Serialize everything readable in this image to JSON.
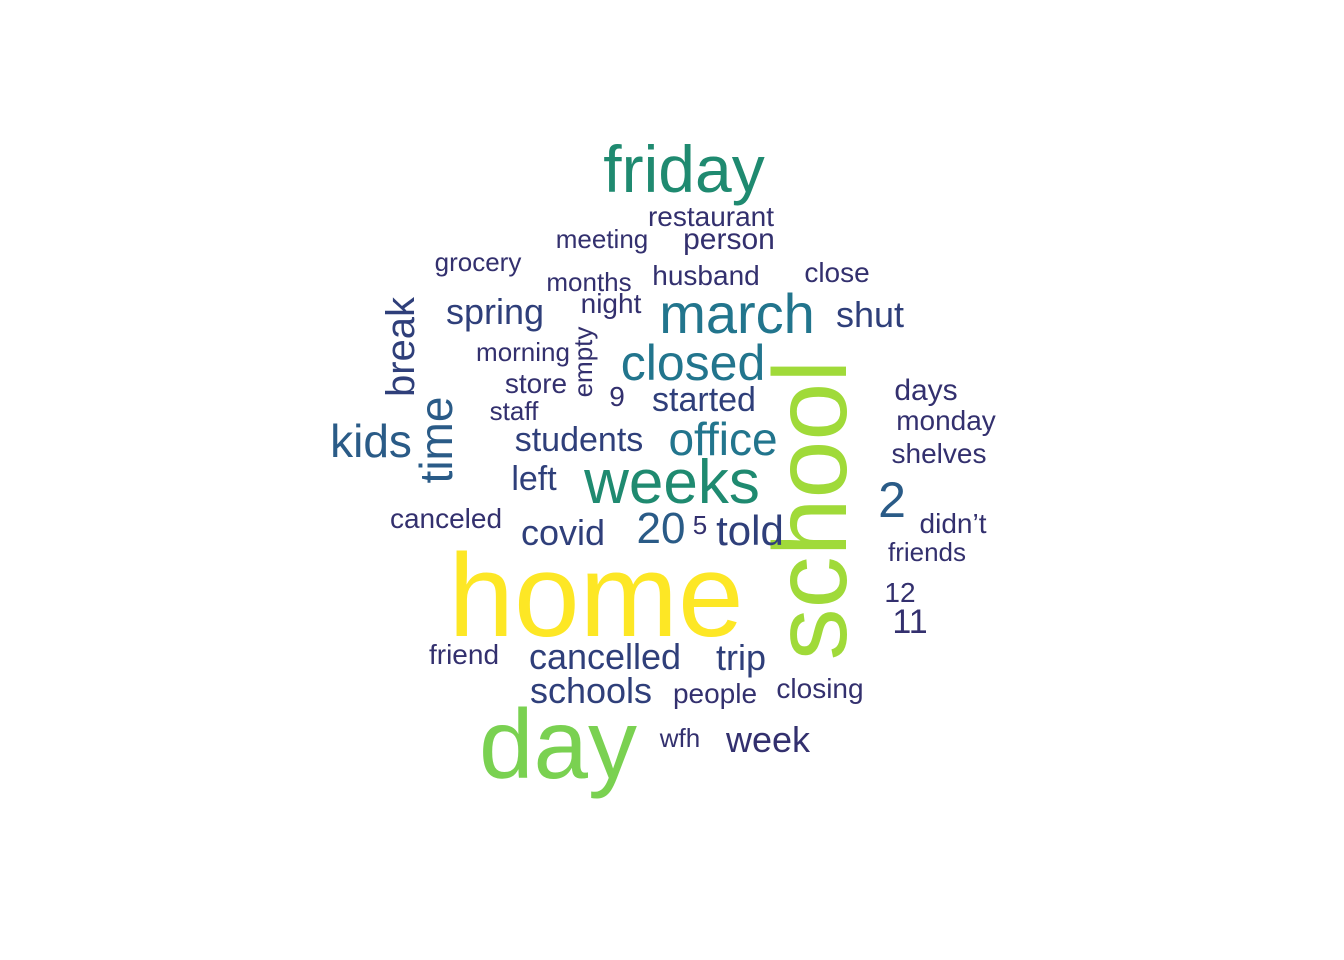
{
  "word_cloud": {
    "palette": {
      "yellow": "#fde725",
      "lime": "#a0da39",
      "green": "#7ad151",
      "teal": "#1f8a70",
      "teal_blue": "#22758d",
      "blue": "#2a5b87",
      "dark_blue": "#2f3f7a",
      "indigo": "#33306e"
    },
    "words": [
      {
        "text": "home",
        "color": "yellow",
        "rotated": false
      },
      {
        "text": "school",
        "color": "lime",
        "rotated": true
      },
      {
        "text": "day",
        "color": "green",
        "rotated": false
      },
      {
        "text": "friday",
        "color": "teal",
        "rotated": false
      },
      {
        "text": "weeks",
        "color": "teal",
        "rotated": false
      },
      {
        "text": "march",
        "color": "teal_blue",
        "rotated": false
      },
      {
        "text": "closed",
        "color": "teal_blue",
        "rotated": false
      },
      {
        "text": "office",
        "color": "teal_blue",
        "rotated": false
      },
      {
        "text": "kids",
        "color": "blue",
        "rotated": false
      },
      {
        "text": "time",
        "color": "blue",
        "rotated": true
      },
      {
        "text": "2",
        "color": "blue",
        "rotated": false
      },
      {
        "text": "20",
        "color": "blue",
        "rotated": false
      },
      {
        "text": "told",
        "color": "dark_blue",
        "rotated": false
      },
      {
        "text": "break",
        "color": "dark_blue",
        "rotated": true
      },
      {
        "text": "spring",
        "color": "dark_blue",
        "rotated": false
      },
      {
        "text": "covid",
        "color": "dark_blue",
        "rotated": false
      },
      {
        "text": "students",
        "color": "dark_blue",
        "rotated": false
      },
      {
        "text": "started",
        "color": "dark_blue",
        "rotated": false
      },
      {
        "text": "shut",
        "color": "dark_blue",
        "rotated": false
      },
      {
        "text": "cancelled",
        "color": "dark_blue",
        "rotated": false
      },
      {
        "text": "schools",
        "color": "dark_blue",
        "rotated": false
      },
      {
        "text": "trip",
        "color": "dark_blue",
        "rotated": false
      },
      {
        "text": "week",
        "color": "indigo",
        "rotated": false
      },
      {
        "text": "left",
        "color": "dark_blue",
        "rotated": false
      },
      {
        "text": "11",
        "color": "indigo",
        "rotated": false
      },
      {
        "text": "person",
        "color": "indigo",
        "rotated": false
      },
      {
        "text": "days",
        "color": "indigo",
        "rotated": false
      },
      {
        "text": "canceled",
        "color": "indigo",
        "rotated": false
      },
      {
        "text": "restaurant",
        "color": "indigo",
        "rotated": false
      },
      {
        "text": "meeting",
        "color": "indigo",
        "rotated": false
      },
      {
        "text": "grocery",
        "color": "indigo",
        "rotated": false
      },
      {
        "text": "months",
        "color": "indigo",
        "rotated": false
      },
      {
        "text": "husband",
        "color": "indigo",
        "rotated": false
      },
      {
        "text": "close",
        "color": "indigo",
        "rotated": false
      },
      {
        "text": "night",
        "color": "indigo",
        "rotated": false
      },
      {
        "text": "morning",
        "color": "indigo",
        "rotated": false
      },
      {
        "text": "empty",
        "color": "indigo",
        "rotated": true
      },
      {
        "text": "store",
        "color": "indigo",
        "rotated": false
      },
      {
        "text": "staff",
        "color": "indigo",
        "rotated": false
      },
      {
        "text": "9",
        "color": "indigo",
        "rotated": false
      },
      {
        "text": "monday",
        "color": "indigo",
        "rotated": false
      },
      {
        "text": "shelves",
        "color": "indigo",
        "rotated": false
      },
      {
        "text": "5",
        "color": "indigo",
        "rotated": false
      },
      {
        "text": "didn’t",
        "color": "indigo",
        "rotated": false
      },
      {
        "text": "friends",
        "color": "indigo",
        "rotated": false
      },
      {
        "text": "12",
        "color": "indigo",
        "rotated": false
      },
      {
        "text": "friend",
        "color": "indigo",
        "rotated": false
      },
      {
        "text": "people",
        "color": "indigo",
        "rotated": false
      },
      {
        "text": "closing",
        "color": "indigo",
        "rotated": false
      },
      {
        "text": "wfh",
        "color": "indigo",
        "rotated": false
      }
    ]
  }
}
